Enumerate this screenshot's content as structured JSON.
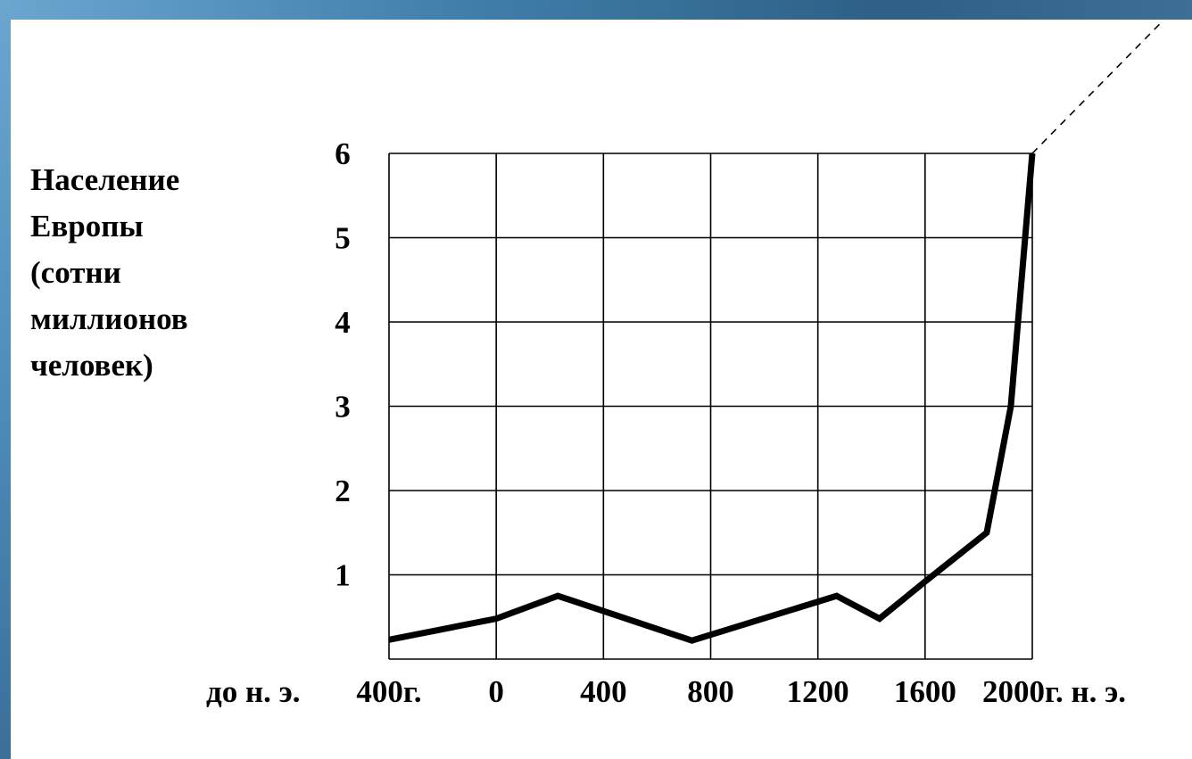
{
  "colors": {
    "frame_light": "#6aa6cf",
    "frame_dark": "#2e5f85",
    "background": "#ffffff",
    "line": "#000000",
    "grid": "#000000"
  },
  "chart_data": {
    "type": "line",
    "title": "",
    "ylabel_lines": [
      "Население",
      "Европы",
      "(сотни",
      "миллионов",
      "человек)"
    ],
    "y_ticks": [
      "1",
      "2",
      "3",
      "4",
      "5",
      "6"
    ],
    "ylim": [
      0,
      6
    ],
    "xlim": [
      -400,
      2000
    ],
    "x_ticks": [
      {
        "value": -400,
        "label": "400г."
      },
      {
        "value": 0,
        "label": "0"
      },
      {
        "value": 400,
        "label": "400"
      },
      {
        "value": 800,
        "label": "800"
      },
      {
        "value": 1200,
        "label": "1200"
      },
      {
        "value": 1600,
        "label": "1600"
      },
      {
        "value": 2000,
        "label": "2000г. н. э."
      }
    ],
    "x_prefix_label": "до н. э.",
    "grid": true,
    "series": [
      {
        "x": [
          -400,
          0,
          230,
          730,
          1270,
          1430,
          1600,
          1830,
          1920,
          2000
        ],
        "y": [
          0.23,
          0.48,
          0.75,
          0.22,
          0.75,
          0.48,
          0.92,
          1.5,
          3.0,
          6.0
        ]
      }
    ],
    "extrapolation": {
      "style": "dashed",
      "x": [
        2000,
        2480
      ],
      "y": [
        6.0,
        7.55
      ]
    }
  }
}
